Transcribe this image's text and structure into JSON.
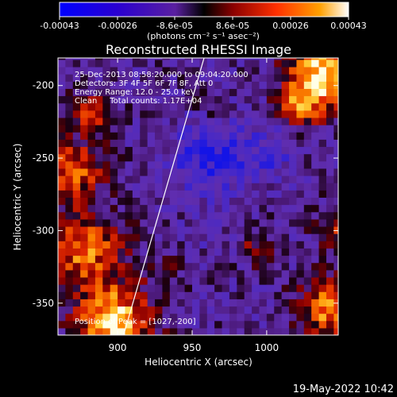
{
  "colorbar": {
    "tick_labels": [
      "-0.00043",
      "-0.00026",
      "-8.6e-05",
      "8.6e-05",
      "0.00026",
      "0.00043"
    ],
    "units": "(photons cm⁻² s⁻¹ asec⁻²)",
    "range": [
      -0.00043,
      0.00043
    ]
  },
  "chart_data": {
    "type": "heatmap",
    "title": "Reconstructed RHESSI Image",
    "xlabel": "Heliocentric X (arcsec)",
    "ylabel": "Heliocentric Y (arcsec)",
    "xlim": [
      860,
      1048
    ],
    "ylim": [
      -372,
      -181
    ],
    "x_ticks": [
      900,
      950,
      1000
    ],
    "y_ticks": [
      -200,
      -250,
      -300,
      -350
    ],
    "annotations": [
      "25-Dec-2013 08:58:20.000 to 09:04:20.000",
      "Detectors: 3F 4F 5F 6F 7F 8F, Att 0",
      "Energy Range: 12.0 - 25.0 keV",
      "Clean     Total counts: 1.17E+04"
    ],
    "peak_label": "Position of Peak = [1027,-200]",
    "peak": [
      1027,
      -200
    ],
    "limb_line": [
      [
        904,
        -372
      ],
      [
        958,
        -181
      ]
    ]
  },
  "timestamp": "19-May-2022 10:42"
}
